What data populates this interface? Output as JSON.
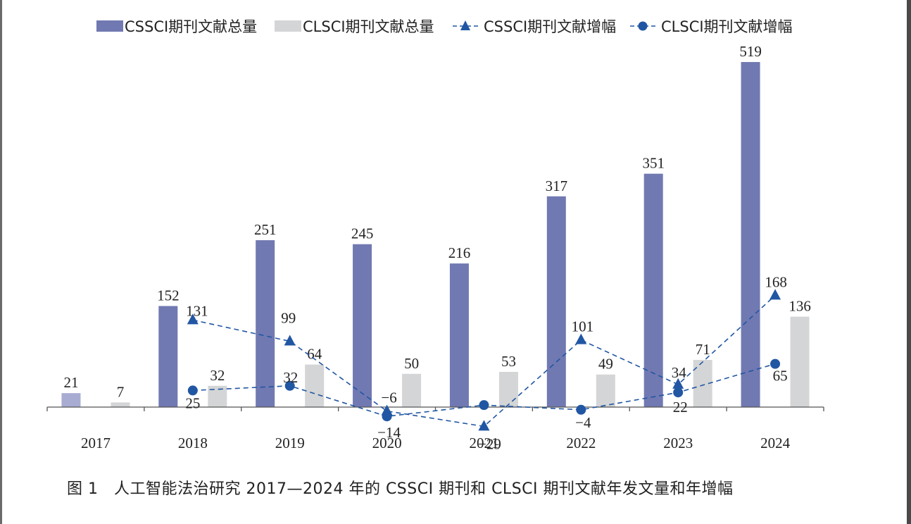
{
  "chart_data": {
    "type": "bar",
    "categories": [
      "2017",
      "2018",
      "2019",
      "2020",
      "2021",
      "2022",
      "2023",
      "2024"
    ],
    "series": [
      {
        "name": "CSSCI期刊文献总量",
        "kind": "bar",
        "color": "#7179b2",
        "values": [
          21,
          152,
          251,
          245,
          216,
          317,
          351,
          519
        ]
      },
      {
        "name": "CLSCI期刊文献总量",
        "kind": "bar",
        "color": "#d4d5d6",
        "values": [
          7,
          32,
          64,
          50,
          53,
          49,
          71,
          136
        ]
      },
      {
        "name": "CSSCI期刊文献增幅",
        "kind": "line",
        "marker": "triangle",
        "color": "#2156a3",
        "values": [
          null,
          131,
          99,
          -6,
          -29,
          101,
          34,
          168
        ]
      },
      {
        "name": "CLSCI期刊文献增幅",
        "kind": "line",
        "marker": "circle",
        "color": "#2156a3",
        "values": [
          null,
          25,
          32,
          -14,
          3,
          -4,
          22,
          65
        ]
      }
    ],
    "point_labels": {
      "CLSCI期刊文献增幅": [
        "",
        "25",
        "32",
        "−14",
        "",
        "−4",
        "22",
        "65"
      ],
      "CSSCI期刊文献增幅": [
        "",
        "131",
        "99",
        "−6",
        "−29",
        "101",
        "34",
        "168"
      ]
    },
    "ylim": [
      -30,
      530
    ],
    "legend_position": "top",
    "grid": false
  },
  "caption": "图 1　人工智能法治研究 2017—2024 年的 CSSCI 期刊和 CLSCI 期刊文献年发文量和年增幅"
}
